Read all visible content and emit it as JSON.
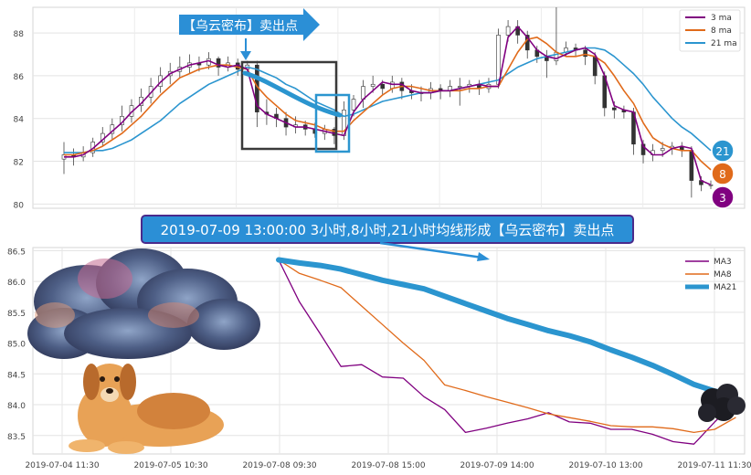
{
  "chart_data": [
    {
      "type": "line",
      "panel": "top",
      "ylim": [
        79.8,
        89.2
      ],
      "yticks": [
        "80",
        "82",
        "84",
        "86",
        "88"
      ],
      "series": [
        {
          "name": "3 ma",
          "color": "#800080",
          "values": [
            82.2,
            82.2,
            82.3,
            82.6,
            83.0,
            83.4,
            83.8,
            84.3,
            84.7,
            85.2,
            85.7,
            86.1,
            86.3,
            86.5,
            86.6,
            86.7,
            86.5,
            86.4,
            86.5,
            86.3,
            84.6,
            84.2,
            84.0,
            83.8,
            83.6,
            83.6,
            83.5,
            83.4,
            83.3,
            83.2,
            84.3,
            84.9,
            85.3,
            85.7,
            85.6,
            85.6,
            85.3,
            85.2,
            85.2,
            85.3,
            85.3,
            85.4,
            85.5,
            85.6,
            85.5,
            85.5,
            87.8,
            88.3,
            87.8,
            87.2,
            86.9,
            86.8,
            87.0,
            87.2,
            87.3,
            87.0,
            86.0,
            84.6,
            84.4,
            84.3,
            82.7,
            82.3,
            82.3,
            82.6,
            82.7,
            82.6,
            81.1,
            80.9
          ]
        },
        {
          "name": "8 ma",
          "color": "#e06a1a",
          "values": [
            82.3,
            82.3,
            82.4,
            82.5,
            82.7,
            83.0,
            83.3,
            83.7,
            84.1,
            84.6,
            85.1,
            85.5,
            85.9,
            86.1,
            86.3,
            86.4,
            86.5,
            86.5,
            86.4,
            86.3,
            85.5,
            85.0,
            84.6,
            84.2,
            83.9,
            83.8,
            83.7,
            83.5,
            83.4,
            83.4,
            83.9,
            84.3,
            84.7,
            85.1,
            85.4,
            85.5,
            85.5,
            85.4,
            85.3,
            85.3,
            85.3,
            85.3,
            85.4,
            85.4,
            85.5,
            85.5,
            86.3,
            87.1,
            87.7,
            87.8,
            87.5,
            87.1,
            86.9,
            86.9,
            87.0,
            86.9,
            86.6,
            86.0,
            85.3,
            84.7,
            83.8,
            83.1,
            82.8,
            82.6,
            82.5,
            82.5,
            82.0,
            81.6
          ]
        },
        {
          "name": "21 ma",
          "color": "#2b95cf",
          "values": [
            82.4,
            82.4,
            82.4,
            82.5,
            82.5,
            82.6,
            82.8,
            83.0,
            83.3,
            83.6,
            83.9,
            84.3,
            84.7,
            85.0,
            85.3,
            85.6,
            85.8,
            86.0,
            86.2,
            86.4,
            86.3,
            86.1,
            85.9,
            85.6,
            85.4,
            85.1,
            84.8,
            84.6,
            84.4,
            84.1,
            84.2,
            84.4,
            84.6,
            84.8,
            84.9,
            85.0,
            85.1,
            85.2,
            85.2,
            85.3,
            85.3,
            85.4,
            85.5,
            85.6,
            85.7,
            85.8,
            86.1,
            86.4,
            86.6,
            86.8,
            86.9,
            87.0,
            87.1,
            87.2,
            87.3,
            87.3,
            87.2,
            86.9,
            86.5,
            86.1,
            85.6,
            85.0,
            84.5,
            84.0,
            83.6,
            83.3,
            82.9,
            82.5
          ]
        }
      ],
      "candles": [
        [
          82.1,
          82.3,
          81.4,
          82.9
        ],
        [
          82.3,
          82.2,
          81.8,
          82.6
        ],
        [
          82.2,
          82.4,
          82.0,
          82.7
        ],
        [
          82.4,
          82.9,
          82.2,
          83.1
        ],
        [
          82.9,
          83.3,
          82.7,
          83.6
        ],
        [
          83.3,
          83.7,
          83.0,
          84.0
        ],
        [
          83.7,
          84.1,
          83.4,
          84.6
        ],
        [
          84.1,
          84.6,
          83.8,
          84.9
        ],
        [
          84.6,
          85.0,
          84.3,
          85.4
        ],
        [
          85.0,
          85.5,
          84.7,
          85.9
        ],
        [
          85.5,
          86.0,
          85.2,
          86.4
        ],
        [
          86.0,
          86.2,
          85.6,
          86.6
        ],
        [
          86.2,
          86.4,
          85.9,
          86.9
        ],
        [
          86.4,
          86.6,
          86.1,
          87.0
        ],
        [
          86.6,
          86.5,
          86.2,
          86.9
        ],
        [
          86.5,
          86.8,
          86.3,
          87.1
        ],
        [
          86.8,
          86.4,
          86.0,
          86.9
        ],
        [
          86.4,
          86.6,
          86.2,
          86.9
        ],
        [
          86.6,
          86.3,
          86.0,
          86.8
        ],
        [
          86.3,
          86.5,
          86.1,
          86.7
        ],
        [
          86.5,
          84.3,
          83.6,
          86.7
        ],
        [
          84.3,
          84.2,
          83.7,
          84.9
        ],
        [
          84.2,
          84.0,
          83.6,
          84.5
        ],
        [
          84.0,
          83.6,
          83.2,
          84.3
        ],
        [
          83.6,
          83.7,
          83.3,
          84.1
        ],
        [
          83.7,
          83.5,
          83.2,
          83.9
        ],
        [
          83.5,
          83.3,
          83.1,
          83.8
        ],
        [
          83.3,
          83.5,
          83.0,
          83.7
        ],
        [
          83.5,
          83.2,
          82.8,
          83.6
        ],
        [
          83.2,
          84.4,
          83.0,
          84.8
        ],
        [
          84.4,
          84.9,
          84.1,
          85.1
        ],
        [
          84.9,
          85.5,
          84.5,
          85.8
        ],
        [
          85.5,
          85.6,
          85.2,
          86.0
        ],
        [
          85.6,
          85.4,
          85.1,
          85.8
        ],
        [
          85.4,
          85.7,
          85.2,
          86.0
        ],
        [
          85.7,
          85.3,
          84.9,
          85.9
        ],
        [
          85.3,
          85.2,
          84.9,
          85.6
        ],
        [
          85.2,
          85.2,
          84.8,
          85.5
        ],
        [
          85.2,
          85.4,
          84.9,
          85.7
        ],
        [
          85.4,
          85.3,
          84.9,
          85.6
        ],
        [
          85.3,
          85.5,
          85.0,
          85.8
        ],
        [
          85.5,
          85.5,
          84.6,
          85.9
        ],
        [
          85.5,
          85.6,
          85.2,
          85.8
        ],
        [
          85.6,
          85.4,
          85.1,
          85.8
        ],
        [
          85.4,
          85.6,
          85.2,
          85.9
        ],
        [
          85.6,
          87.9,
          85.4,
          88.2
        ],
        [
          87.9,
          88.3,
          87.6,
          88.6
        ],
        [
          88.3,
          87.9,
          87.5,
          88.6
        ],
        [
          87.9,
          87.2,
          86.8,
          88.1
        ],
        [
          87.2,
          86.9,
          86.6,
          87.4
        ],
        [
          86.9,
          86.7,
          85.9,
          87.2
        ],
        [
          86.7,
          87.1,
          86.5,
          89.2
        ],
        [
          87.1,
          87.3,
          86.9,
          87.6
        ],
        [
          87.3,
          87.2,
          86.9,
          87.5
        ],
        [
          87.2,
          86.9,
          86.5,
          87.4
        ],
        [
          86.9,
          86.0,
          85.6,
          87.1
        ],
        [
          86.0,
          84.5,
          84.1,
          86.2
        ],
        [
          84.5,
          84.4,
          84.0,
          84.8
        ],
        [
          84.4,
          84.3,
          84.0,
          84.6
        ],
        [
          84.3,
          82.8,
          82.3,
          84.5
        ],
        [
          82.8,
          82.3,
          81.9,
          83.0
        ],
        [
          82.3,
          82.5,
          82.0,
          82.8
        ],
        [
          82.5,
          82.6,
          82.2,
          82.9
        ],
        [
          82.6,
          82.7,
          82.3,
          82.9
        ],
        [
          82.7,
          82.5,
          82.2,
          82.9
        ],
        [
          82.5,
          81.1,
          80.3,
          82.7
        ],
        [
          81.1,
          80.9,
          80.6,
          81.3
        ],
        [
          80.9,
          80.9,
          80.7,
          81.1
        ]
      ],
      "annotation_arrow": "【乌云密布】卖出点",
      "end_badges": [
        "21",
        "8",
        "3"
      ]
    },
    {
      "type": "line",
      "panel": "bottom",
      "title": "2019-07-09 13:00:00 3小时,8小时,21小时均线形成【乌云密布】卖出点",
      "ylim": [
        83.2,
        86.55
      ],
      "yticks": [
        "83.5",
        "84.0",
        "84.5",
        "85.0",
        "85.5",
        "86.0",
        "86.5"
      ],
      "xticks": [
        "2019-07-04 11:30",
        "2019-07-05 10:30",
        "2019-07-08 09:30",
        "2019-07-08 15:00",
        "2019-07-09 14:00",
        "2019-07-10 13:00",
        "2019-07-11 11:30"
      ],
      "series": [
        {
          "name": "MA3",
          "color": "#800080",
          "values": [
            86.35,
            85.67,
            85.15,
            84.62,
            84.65,
            84.45,
            84.43,
            84.13,
            83.92,
            83.55,
            83.62,
            83.7,
            83.77,
            83.87,
            83.72,
            83.7,
            83.6,
            83.6,
            83.52,
            83.4,
            83.36,
            83.72,
            84.05
          ]
        },
        {
          "name": "MA8",
          "color": "#e06a1a",
          "values": [
            86.35,
            86.13,
            86.02,
            85.9,
            85.6,
            85.3,
            85.0,
            84.72,
            84.32,
            84.23,
            84.13,
            84.04,
            83.95,
            83.85,
            83.79,
            83.73,
            83.66,
            83.64,
            83.64,
            83.61,
            83.55,
            83.6,
            83.79
          ]
        },
        {
          "name": "MA21",
          "color": "#2b95cf",
          "values": [
            86.35,
            86.3,
            86.26,
            86.2,
            86.11,
            86.02,
            85.95,
            85.88,
            85.76,
            85.64,
            85.52,
            85.4,
            85.3,
            85.2,
            85.12,
            85.02,
            84.89,
            84.77,
            84.64,
            84.49,
            84.33,
            84.22,
            84.15
          ]
        }
      ]
    }
  ]
}
